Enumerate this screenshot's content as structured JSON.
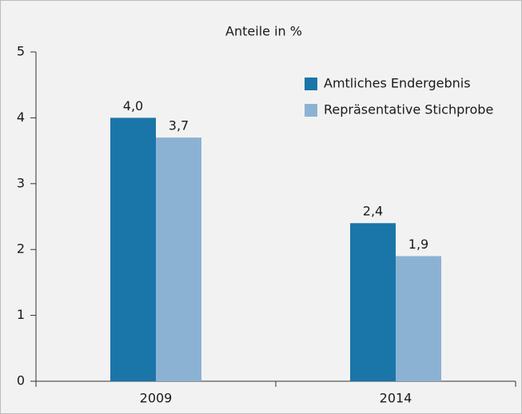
{
  "chart_data": {
    "type": "bar",
    "title": "Anteile in %",
    "categories": [
      "2009",
      "2014"
    ],
    "series": [
      {
        "name": "Amtliches Endergebnis",
        "color": "#1a75a8",
        "values": [
          4.0,
          2.4
        ],
        "value_labels": [
          "4,0",
          "2,4"
        ]
      },
      {
        "name": "Repräsentative Stichprobe",
        "color": "#8cb2d3",
        "values": [
          3.7,
          1.9
        ],
        "value_labels": [
          "3,7",
          "1,9"
        ]
      }
    ],
    "ylim": [
      0,
      5
    ],
    "yticks": [
      0,
      1,
      2,
      3,
      4,
      5
    ],
    "legend": "upper right",
    "grid": false
  }
}
